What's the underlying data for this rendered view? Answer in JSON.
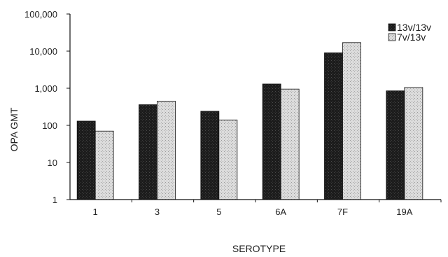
{
  "chart_data": {
    "type": "bar",
    "title": "",
    "xlabel": "SEROTYPE",
    "ylabel": "OPA GMT",
    "yscale": "log",
    "ylim": [
      1,
      100000
    ],
    "yticks": [
      {
        "value": 1,
        "label": "1"
      },
      {
        "value": 10,
        "label": "10"
      },
      {
        "value": 100,
        "label": "100"
      },
      {
        "value": 1000,
        "label": "1,000"
      },
      {
        "value": 10000,
        "label": "10,000"
      },
      {
        "value": 100000,
        "label": "100,000"
      }
    ],
    "categories": [
      "1",
      "3",
      "5",
      "6A",
      "7F",
      "19A"
    ],
    "series": [
      {
        "name": "13v/13v",
        "color": "#1a1a1a",
        "values": [
          130,
          360,
          240,
          1300,
          9000,
          850
        ]
      },
      {
        "name": "7v/13v",
        "color": "#d6d6d6",
        "values": [
          70,
          450,
          140,
          950,
          17000,
          1050
        ]
      }
    ],
    "legend_position": "top-right",
    "grid": false
  }
}
